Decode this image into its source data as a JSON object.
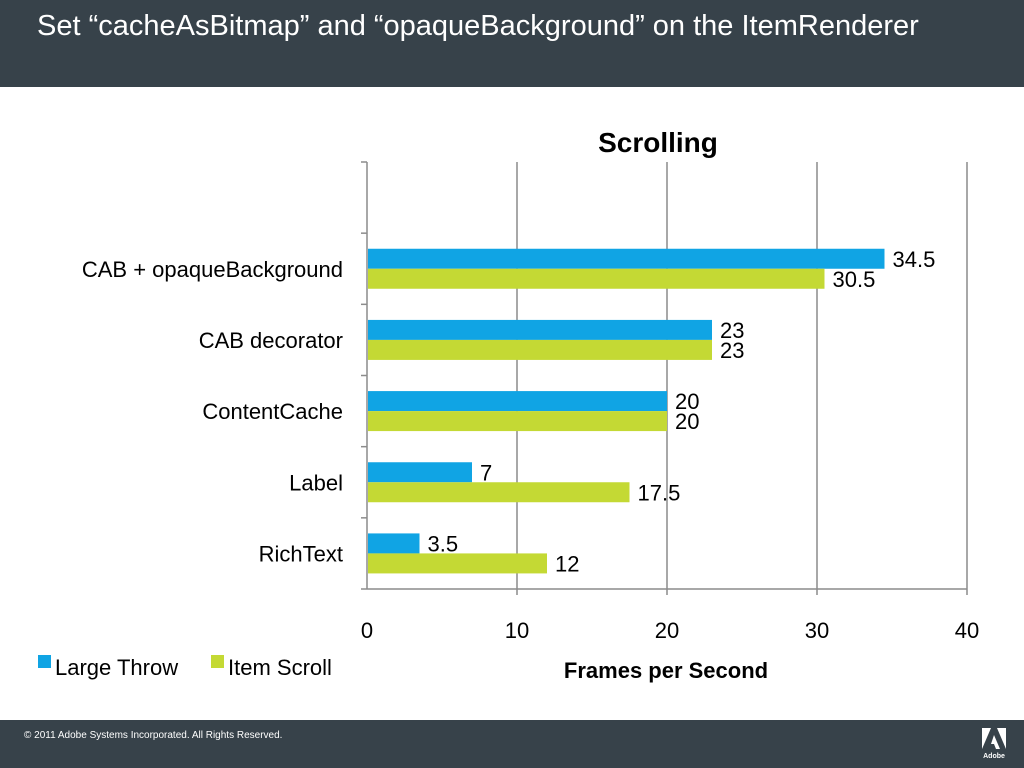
{
  "slide": {
    "title": "Set “cacheAsBitmap” and “opaqueBackground” on the ItemRenderer",
    "footer": "© 2011 Adobe Systems Incorporated.   All Rights Reserved.",
    "logo_text": "Adobe"
  },
  "chart_data": {
    "type": "bar",
    "orientation": "horizontal",
    "title": "Scrolling",
    "xlabel": "Frames per Second",
    "ylabel": "",
    "xlim": [
      0,
      40
    ],
    "xticks": [
      0,
      10,
      20,
      30,
      40
    ],
    "grid": true,
    "legend_position": "bottom-left",
    "categories": [
      "CAB + opaqueBackground",
      "CAB decorator",
      "ContentCache",
      "Label",
      "RichText"
    ],
    "series": [
      {
        "name": "Large Throw",
        "color": "#10a4e4",
        "values": [
          34.5,
          23,
          20,
          7,
          3.5
        ]
      },
      {
        "name": "Item Scroll",
        "color": "#c4d934",
        "values": [
          30.5,
          23,
          20,
          17.5,
          12
        ]
      }
    ]
  }
}
